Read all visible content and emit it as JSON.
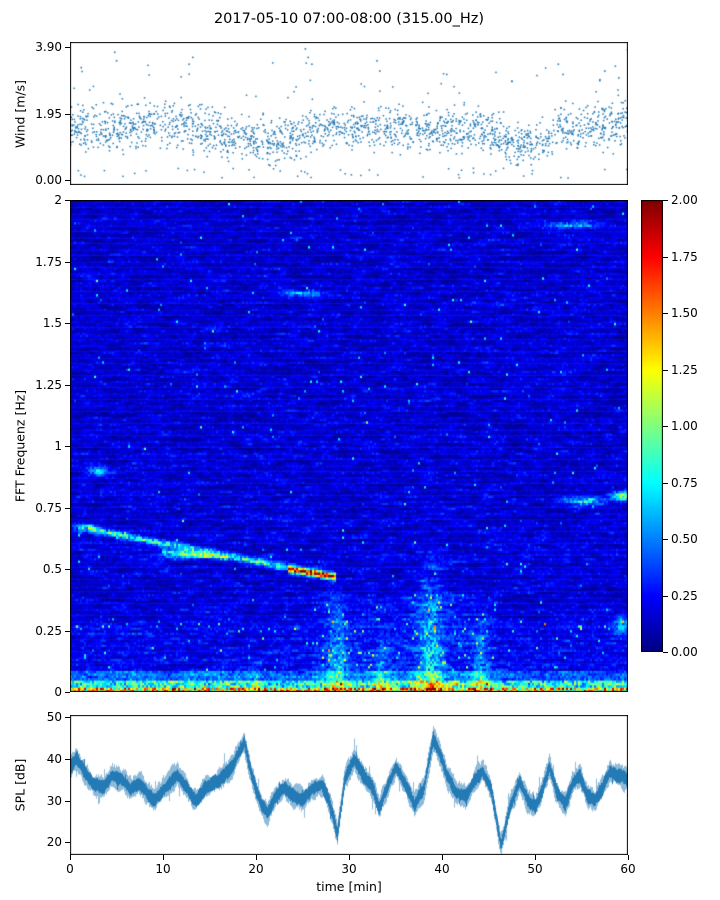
{
  "figure": {
    "title": "2017-05-10 07:00-08:00 (315.00_Hz)",
    "xlabel": "time [min]",
    "background": "#ffffff",
    "accent_color": "#1f77b4"
  },
  "chart_data": [
    {
      "type": "scatter",
      "name": "wind-speed",
      "ylabel": "Wind [m/s]",
      "xlim": [
        0,
        60
      ],
      "ylim": [
        -0.15,
        4.05
      ],
      "ytick_values": [
        0.0,
        1.95,
        3.9
      ],
      "ytick_labels": [
        "0.00",
        "1.95",
        "3.90"
      ],
      "point_color": "#2077b4",
      "n_points": 1950,
      "spread": 0.42,
      "mean_keyframes": {
        "t": [
          0,
          2,
          4,
          6,
          8,
          10,
          12,
          14,
          16,
          18,
          20,
          22,
          24,
          26,
          28,
          30,
          32,
          34,
          36,
          38,
          40,
          42,
          44,
          46,
          48,
          50,
          52,
          54,
          56,
          58,
          60
        ],
        "v": [
          1.4,
          1.5,
          1.55,
          1.6,
          1.5,
          1.55,
          1.6,
          1.5,
          1.3,
          1.2,
          1.15,
          1.1,
          1.2,
          1.5,
          1.6,
          1.5,
          1.55,
          1.5,
          1.45,
          1.5,
          1.4,
          1.45,
          1.5,
          1.2,
          1.0,
          1.1,
          1.4,
          1.5,
          1.55,
          1.6,
          1.7
        ]
      },
      "outliers": [
        {
          "t": 1.2,
          "v": 3.3
        },
        {
          "t": 4.8,
          "v": 3.75
        },
        {
          "t": 5.0,
          "v": 3.5
        },
        {
          "t": 12.8,
          "v": 3.4
        },
        {
          "t": 13.2,
          "v": 3.6
        },
        {
          "t": 25.3,
          "v": 3.85
        },
        {
          "t": 25.6,
          "v": 3.6
        },
        {
          "t": 26.0,
          "v": 3.4
        },
        {
          "t": 33.0,
          "v": 3.5
        },
        {
          "t": 33.3,
          "v": 3.2
        },
        {
          "t": 40.5,
          "v": 3.1
        },
        {
          "t": 47.5,
          "v": 2.9
        },
        {
          "t": 52.5,
          "v": 3.4
        },
        {
          "t": 53.0,
          "v": 3.1
        },
        {
          "t": 57.5,
          "v": 3.2
        },
        {
          "t": 59.0,
          "v": 3.0
        }
      ]
    },
    {
      "type": "heatmap",
      "name": "spectrogram",
      "ylabel": "FFT Frequenz [Hz]",
      "xlim": [
        0,
        60
      ],
      "ylim": [
        0,
        2
      ],
      "colormap": "jet",
      "vmin": 0.0,
      "vmax": 2.0,
      "ytick_values": [
        0,
        0.25,
        0.5,
        0.75,
        1,
        1.25,
        1.5,
        1.75,
        2
      ],
      "ytick_labels": [
        "0",
        "0.25",
        "0.5",
        "0.75",
        "1",
        "1.25",
        "1.5",
        "1.75",
        "2"
      ],
      "colorbar_tick_values": [
        0,
        0.25,
        0.5,
        0.75,
        1.0,
        1.25,
        1.5,
        1.75,
        2.0
      ],
      "colorbar_tick_labels": [
        "0.00",
        "0.25",
        "0.50",
        "0.75",
        "1.00",
        "1.25",
        "1.50",
        "1.75",
        "2.00"
      ],
      "features": [
        {
          "kind": "band",
          "f0": 0.0,
          "f1": 0.018,
          "value": 1.5,
          "flicker": 0.8
        },
        {
          "kind": "band",
          "f0": 0.018,
          "f1": 0.045,
          "value": 0.9,
          "flicker": 0.7
        },
        {
          "kind": "band",
          "f0": 0.045,
          "f1": 0.09,
          "value": 0.45,
          "flicker": 0.5
        },
        {
          "kind": "chirp",
          "t0": 2,
          "t1": 28.5,
          "fStart": 0.665,
          "fEnd": 0.47,
          "value": 0.7,
          "width": 0.013
        },
        {
          "kind": "chirp",
          "t0": 10,
          "t1": 17,
          "fStart": 0.575,
          "fEnd": 0.545,
          "value": 0.5,
          "width": 0.01
        },
        {
          "kind": "chirp",
          "t0": 23.5,
          "t1": 28.5,
          "fStart": 0.5,
          "fEnd": 0.472,
          "value": 1.1,
          "width": 0.014
        },
        {
          "kind": "blob",
          "t": 1.5,
          "f": 0.67,
          "tw": 1.0,
          "fw": 0.015,
          "value": 0.6
        },
        {
          "kind": "burst",
          "t": 28.8,
          "tw": 1.0,
          "f0": 0,
          "f1": 0.5,
          "value": 0.5
        },
        {
          "kind": "burst",
          "t": 38.8,
          "tw": 1.4,
          "f0": 0,
          "f1": 0.65,
          "value": 0.55
        },
        {
          "kind": "burst",
          "t": 44.2,
          "tw": 0.8,
          "f0": 0,
          "f1": 0.35,
          "value": 0.45
        },
        {
          "kind": "burst",
          "t": 33.5,
          "tw": 0.9,
          "f0": 0,
          "f1": 0.3,
          "value": 0.35
        },
        {
          "kind": "burst",
          "t": 20.0,
          "tw": 0.6,
          "f0": 0,
          "f1": 0.15,
          "value": 0.35
        },
        {
          "kind": "blob",
          "t": 3.0,
          "f": 0.9,
          "tw": 1.2,
          "fw": 0.02,
          "value": 0.55
        },
        {
          "kind": "blob",
          "t": 12.5,
          "f": 0.555,
          "tw": 3.0,
          "fw": 0.012,
          "value": 0.5
        },
        {
          "kind": "blob",
          "t": 25.0,
          "f": 1.62,
          "tw": 2.2,
          "fw": 0.012,
          "value": 0.5
        },
        {
          "kind": "blob",
          "t": 54.0,
          "f": 1.9,
          "tw": 3.5,
          "fw": 0.014,
          "value": 0.45
        },
        {
          "kind": "blob",
          "t": 55.5,
          "f": 0.78,
          "tw": 2.0,
          "fw": 0.018,
          "value": 0.65
        },
        {
          "kind": "blob",
          "t": 59.5,
          "f": 0.8,
          "tw": 1.2,
          "fw": 0.02,
          "value": 0.8
        },
        {
          "kind": "blob",
          "t": 59.5,
          "f": 0.27,
          "tw": 1.0,
          "fw": 0.03,
          "value": 0.5
        },
        {
          "kind": "region",
          "t0": 26,
          "t1": 46,
          "f0": 0.03,
          "f1": 0.4,
          "value": 0.12,
          "speckle": 0.02
        },
        {
          "kind": "region",
          "t0": 0,
          "t1": 60,
          "f0": 0.09,
          "f1": 0.3,
          "value": 0.08,
          "speckle": 0.012
        }
      ]
    },
    {
      "type": "line",
      "name": "spl",
      "ylabel": "SPL [dB]",
      "xlim": [
        0,
        60
      ],
      "ylim": [
        17,
        50.5
      ],
      "ytick_values": [
        20,
        30,
        40,
        50
      ],
      "ytick_labels": [
        "20",
        "30",
        "40",
        "50"
      ],
      "xtick_values": [
        0,
        10,
        20,
        30,
        40,
        50,
        60
      ],
      "xtick_labels": [
        "0",
        "10",
        "20",
        "30",
        "40",
        "50",
        "60"
      ],
      "line_color": "#2077b4",
      "mean_keyframes": {
        "t": [
          0,
          0.7,
          1.5,
          2.5,
          3.5,
          4.5,
          5.5,
          6.5,
          7.5,
          9,
          10.5,
          11.5,
          12.5,
          13.5,
          14.5,
          16,
          17,
          18,
          18.7,
          19.5,
          20.5,
          21.2,
          22,
          23,
          24,
          25,
          26,
          27,
          27.8,
          28.7,
          29.5,
          30.5,
          31.5,
          32.5,
          33.2,
          34,
          35,
          36,
          37,
          38,
          39,
          39.6,
          40.5,
          41.5,
          42.5,
          43.5,
          44.3,
          45.2,
          46.3,
          47.2,
          48.3,
          49.2,
          50,
          50.8,
          51.5,
          52.3,
          53.2,
          54,
          54.8,
          55.6,
          56.4,
          57.2,
          58,
          59,
          60
        ],
        "v": [
          38,
          40,
          37,
          34,
          33,
          36,
          35,
          33,
          34,
          30,
          34,
          36,
          33,
          30,
          33,
          35,
          37,
          41,
          44,
          36,
          29,
          27,
          31,
          33,
          31,
          30,
          33,
          34,
          30,
          22,
          35,
          40,
          36,
          33,
          28,
          33,
          38,
          34,
          29,
          33,
          45,
          42,
          36,
          32,
          31,
          35,
          37,
          33,
          19.5,
          28,
          35,
          30,
          28.5,
          33,
          38,
          32,
          29,
          34,
          36,
          31,
          30,
          33,
          37,
          36,
          35
        ]
      }
    }
  ]
}
